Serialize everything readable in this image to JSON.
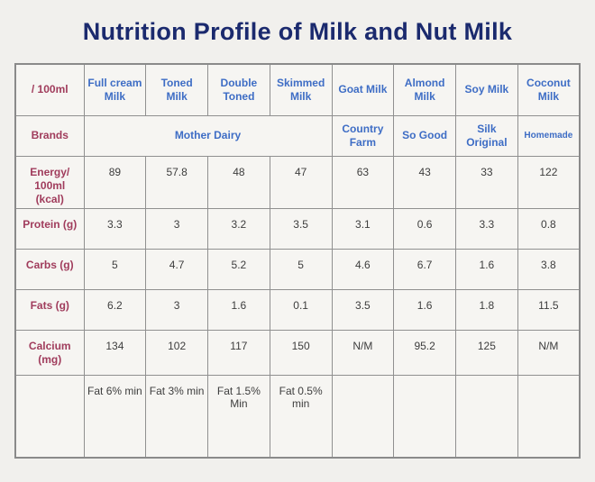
{
  "page": {
    "background": "#f1f0ed"
  },
  "colors": {
    "title": "#1b2a6e",
    "row_label": "#a03c5c",
    "column_header": "#3e6dc5",
    "value_text": "#3d3d3d",
    "grid_border": "#909090",
    "cell_background": "#f6f5f2"
  },
  "chart_data": {
    "type": "table",
    "title": "Nutrition Profile of Milk and Nut Milk",
    "unit_label": "/ 100ml",
    "columns": [
      "Full cream Milk",
      "Toned Milk",
      "Double Toned",
      "Skimmed Milk",
      "Goat Milk",
      "Almond Milk",
      "Soy Milk",
      "Coconut Milk"
    ],
    "brands_row": {
      "label": "Brands",
      "merged_brand": "Mother Dairy",
      "merged_span": "4",
      "other_brands": [
        "Country Farm",
        "So Good",
        "Silk Original",
        "Homemade"
      ]
    },
    "rows": [
      {
        "label": "Energy/ 100ml (kcal)",
        "values": [
          "89",
          "57.8",
          "48",
          "47",
          "63",
          "43",
          "33",
          "122"
        ]
      },
      {
        "label": "Protein (g)",
        "values": [
          "3.3",
          "3",
          "3.2",
          "3.5",
          "3.1",
          "0.6",
          "3.3",
          "0.8"
        ]
      },
      {
        "label": "Carbs (g)",
        "values": [
          "5",
          "4.7",
          "5.2",
          "5",
          "4.6",
          "6.7",
          "1.6",
          "3.8"
        ]
      },
      {
        "label": "Fats (g)",
        "values": [
          "6.2",
          "3",
          "1.6",
          "0.1",
          "3.5",
          "1.6",
          "1.8",
          "11.5"
        ]
      },
      {
        "label": "Calcium (mg)",
        "values": [
          "134",
          "102",
          "117",
          "150",
          "N/M",
          "95.2",
          "125",
          "N/M"
        ]
      },
      {
        "label": "",
        "values": [
          "Fat 6% min",
          "Fat 3% min",
          "Fat 1.5% Min",
          "Fat 0.5% min",
          "",
          "",
          "",
          ""
        ]
      }
    ]
  }
}
